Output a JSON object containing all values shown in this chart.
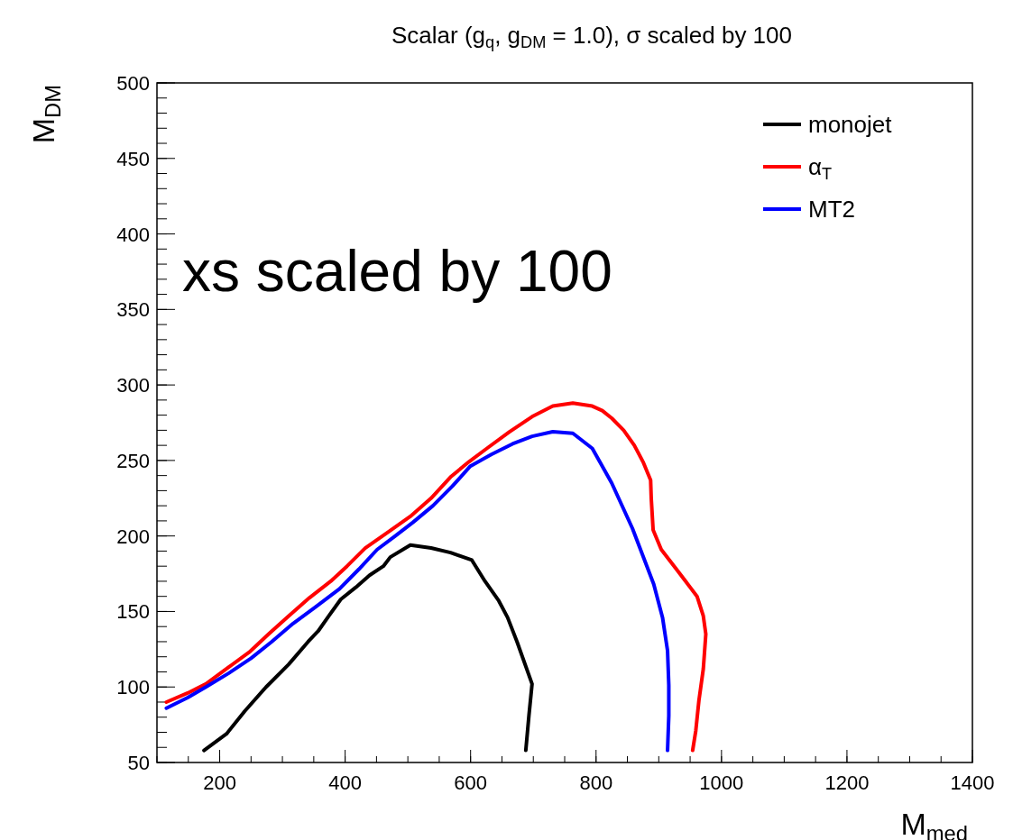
{
  "chart_data": {
    "type": "line",
    "title": "Scalar (g$_{q}$, g$_{DM}$ = 1.0), σ scaled by 100",
    "xlabel": "M$_{med}$",
    "ylabel": "M$_{DM}$",
    "xlim": [
      100,
      1400
    ],
    "ylim": [
      50,
      500
    ],
    "xticks": [
      200,
      400,
      600,
      800,
      1000,
      1200,
      1400
    ],
    "yticks": [
      50,
      100,
      150,
      200,
      250,
      300,
      350,
      400,
      450,
      500
    ],
    "grid": false,
    "legend": "top right",
    "line_style": "solid",
    "marker": "none",
    "annotations": [
      "xs scaled by 100"
    ],
    "series": [
      {
        "name": "monojet",
        "color": "#000000",
        "x": [
          175,
          211,
          240,
          274,
          310,
          341,
          357,
          374,
          393,
          417,
          439,
          461,
          472,
          504,
          537,
          568,
          602,
          623,
          645,
          659,
          674,
          698,
          693,
          688
        ],
        "values": [
          58,
          69,
          84,
          100,
          115,
          130,
          137,
          147,
          158,
          166,
          174,
          180,
          186,
          194,
          192,
          189,
          184,
          170,
          157,
          146,
          130,
          102,
          81,
          58
        ]
      },
      {
        "name": "α$_{T}$",
        "color": "#ff0000",
        "x": [
          115,
          149,
          178,
          214,
          247,
          278,
          310,
          343,
          377,
          403,
          432,
          470,
          504,
          537,
          568,
          597,
          626,
          662,
          698,
          731,
          763,
          794,
          810,
          825,
          844,
          861,
          875,
          887,
          888,
          891,
          904,
          930,
          961,
          971,
          975,
          971,
          964,
          959,
          954
        ],
        "values": [
          90,
          96,
          102,
          113,
          123,
          135,
          147,
          159,
          170,
          180,
          192,
          203,
          213,
          225,
          239,
          249,
          258,
          269,
          279,
          286,
          288,
          286,
          283,
          278,
          270,
          260,
          249,
          237,
          225,
          204,
          191,
          177,
          160,
          147,
          135,
          112,
          91,
          71,
          58
        ]
      },
      {
        "name": "MT2",
        "color": "#0000ff",
        "x": [
          115,
          149,
          178,
          214,
          250,
          283,
          317,
          353,
          391,
          422,
          451,
          480,
          508,
          540,
          571,
          599,
          633,
          667,
          698,
          731,
          763,
          794,
          825,
          858,
          892,
          906,
          914,
          916,
          916,
          914
        ],
        "values": [
          86,
          93,
          100,
          109,
          119,
          130,
          142,
          153,
          165,
          178,
          191,
          200,
          209,
          220,
          233,
          246,
          254,
          261,
          266,
          269,
          268,
          258,
          235,
          205,
          168,
          146,
          124,
          101,
          81,
          58
        ]
      }
    ]
  }
}
